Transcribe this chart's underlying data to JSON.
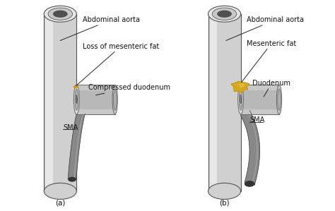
{
  "background_color": "#ffffff",
  "title_a": "(a)",
  "title_b": "(b)",
  "labels_a": {
    "abdominal_aorta": "Abdominal aorta",
    "loss_fat": "Loss of mesenteric fat",
    "compressed_duodenum": "Compressed duodenum",
    "sma": "SMA"
  },
  "labels_b": {
    "abdominal_aorta": "Abdominal aorta",
    "mesenteric_fat": "Mesenteric fat",
    "duodenum": "Duodenum",
    "sma": "SMA"
  },
  "aorta_body": "#d0d0d0",
  "aorta_highlight": "#f2f2f2",
  "aorta_shadow": "#a8a8a8",
  "aorta_edge": "#555555",
  "aorta_top_fill": "#e8e8e8",
  "duo_outer": "#c8c8c8",
  "duo_ring": "#e0e0e0",
  "duo_inner_ring": "#b0b0b0",
  "duo_lumen_a": "#787868",
  "duo_lumen_b": "#888888",
  "duo_edge": "#666666",
  "sma_fill": "#888888",
  "sma_highlight": "#b8b8b8",
  "sma_dark": "#333333",
  "fat_gold": "#d4a820",
  "fat_gold2": "#c49010",
  "fat_bright": "#e8c040",
  "line_color": "#222222",
  "text_color": "#111111",
  "font_size": 7.0
}
